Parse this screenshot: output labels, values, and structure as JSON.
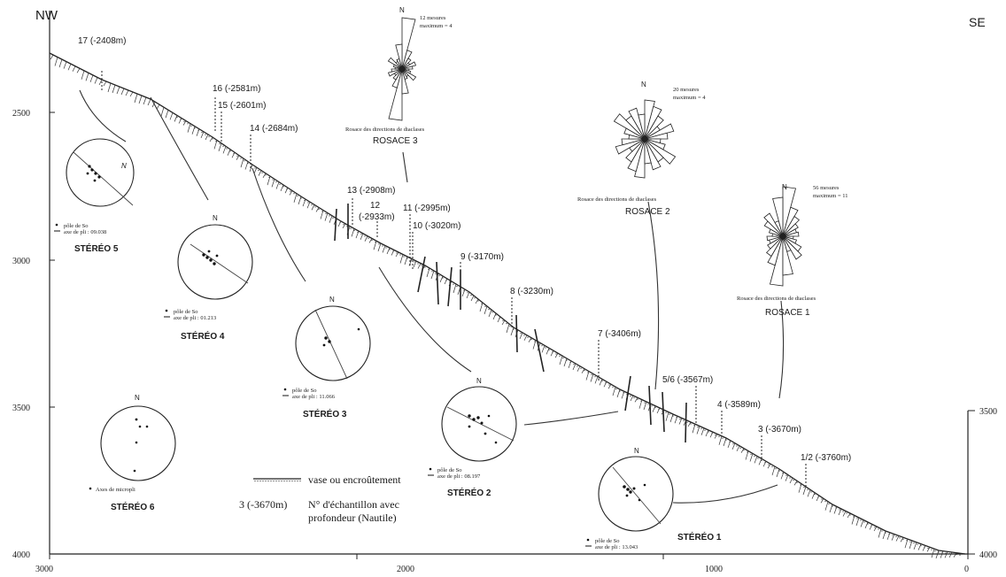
{
  "corners": {
    "left": "NW",
    "right": "SE"
  },
  "y_ticks_left": [
    "2500",
    "3000",
    "3500",
    "4000"
  ],
  "y_ticks_right": [
    "3500",
    "4000"
  ],
  "x_ticks": [
    "3000",
    "2000",
    "1000",
    "0"
  ],
  "samples": [
    {
      "label": "17 (-2408m)"
    },
    {
      "label": "16 (-2581m)"
    },
    {
      "label": "15 (-2601m)"
    },
    {
      "label": "14 (-2684m)"
    },
    {
      "label": "13 (-2908m)"
    },
    {
      "label": "12"
    },
    {
      "label": "(-2933m)"
    },
    {
      "label": "11 (-2995m)"
    },
    {
      "label": "10 (-3020m)"
    },
    {
      "label": "9 (-3170m)"
    },
    {
      "label": "8 (-3230m)"
    },
    {
      "label": "7 (-3406m)"
    },
    {
      "label": "5/6 (-3567m)"
    },
    {
      "label": "4 (-3589m)"
    },
    {
      "label": "3 (-3670m)"
    },
    {
      "label": "1/2 (-3760m)"
    }
  ],
  "stereos": [
    {
      "title": "STÉRÉO 5",
      "north": "N",
      "legend": [
        "pôle de So",
        "axe de pli : 09.038"
      ]
    },
    {
      "title": "STÉRÉO 4",
      "north": "N",
      "legend": [
        "pôle de So",
        "axe de pli : 01.213"
      ]
    },
    {
      "title": "STÉRÉO 3",
      "north": "N",
      "legend": [
        "pôle de So",
        "axe de pli : 11.066"
      ]
    },
    {
      "title": "STÉRÉO 2",
      "north": "N",
      "legend": [
        "pôle de So",
        "axe de pli : 08.197"
      ]
    },
    {
      "title": "STÉRÉO 1",
      "north": "N",
      "legend": [
        "pôle de So",
        "axe de pli : 13.043"
      ]
    },
    {
      "title": "STÉRÉO 6",
      "north": "N",
      "legend": [
        "Axes de micropli"
      ]
    }
  ],
  "rosaces": [
    {
      "title": "ROSACE 3",
      "caption": "Rosace des directions de diaclases",
      "north": "N",
      "count": "12 mesures",
      "max": "maximum = 4"
    },
    {
      "title": "ROSACE 2",
      "caption": "Rosace des directions de diaclases",
      "north": "N",
      "count": "20 mesures",
      "max": "maximum = 4"
    },
    {
      "title": "ROSACE 1",
      "caption": "Rosace des directions de diaclases",
      "north": "N",
      "count": "56 mesures",
      "max": "maximum = 11"
    }
  ],
  "legend": {
    "line1": "vase ou encroûtement",
    "sample_example": "3 (-3670m)",
    "line2a": "N° d'échantillon avec",
    "line2b": "profondeur (Nautile)"
  }
}
